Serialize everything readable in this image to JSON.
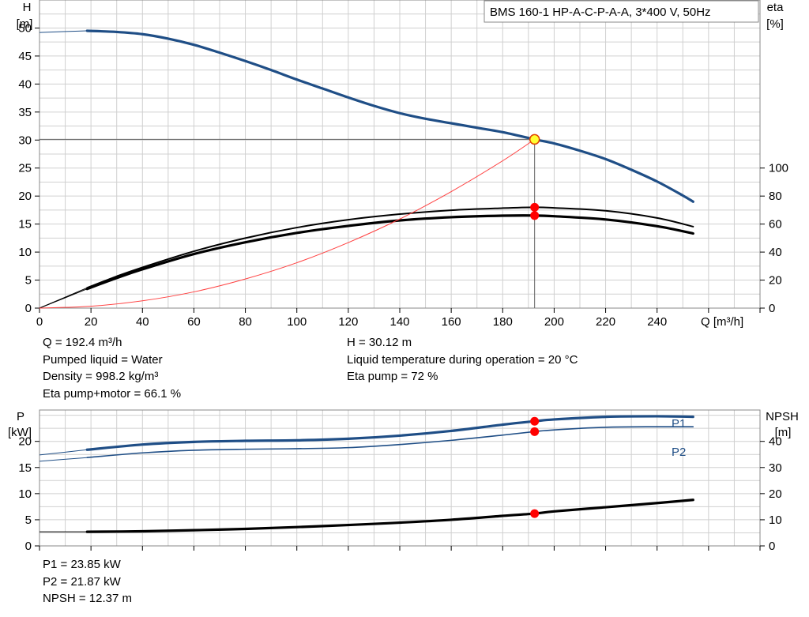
{
  "colors": {
    "head": "#1f4e86",
    "eta": "#000000",
    "system": "#ff4040",
    "p1": "#1f4e86",
    "p2": "#1f4e86",
    "npsh": "#000000",
    "duty_point": "#ff0000",
    "duty_point_head": "#ffff33",
    "grid": "#d0d0d0"
  },
  "pump_label": "BMS 160-1 HP-A-C-P-A-A, 3*400 V, 50Hz",
  "info_top_left": [
    "Q = 192.4 m³/h",
    "Pumped liquid = Water",
    "Density = 998.2 kg/m³",
    "Eta pump+motor = 66.1 %"
  ],
  "info_top_right": [
    "H = 30.12 m",
    "Liquid temperature during operation = 20 °C",
    "Eta pump = 72 %"
  ],
  "info_bottom": [
    "P1 = 23.85 kW",
    "P2 = 21.87 kW",
    "NPSH = 12.37 m"
  ],
  "chart_data": [
    {
      "type": "line",
      "x_axis": {
        "label": "Q [m³/h]",
        "range": [
          0,
          280
        ],
        "ticks": [
          0,
          20,
          40,
          60,
          80,
          100,
          120,
          140,
          160,
          180,
          200,
          220,
          240
        ]
      },
      "y_axis_left": {
        "label_top": "H",
        "label_unit": "[m]",
        "range": [
          0,
          55
        ],
        "ticks": [
          0,
          5,
          10,
          15,
          20,
          25,
          30,
          35,
          40,
          45,
          50
        ]
      },
      "y_axis_right": {
        "label_top": "eta",
        "label_unit": "[%]",
        "range": [
          0,
          220
        ],
        "ticks": [
          0,
          20,
          40,
          60,
          80,
          100
        ]
      },
      "grid": true,
      "series": [
        {
          "key": "head",
          "axis": "left",
          "width": 3.2,
          "ext_x": [
            0,
            18.5
          ],
          "ext_y": [
            49.2,
            49.5
          ],
          "x": [
            18.5,
            30,
            40,
            50,
            60,
            70,
            80,
            90,
            100,
            110,
            120,
            130,
            140,
            150,
            160,
            170,
            180,
            192.4,
            200,
            210,
            220,
            230,
            240,
            250,
            254
          ],
          "y": [
            49.5,
            49.3,
            48.9,
            48.1,
            47.0,
            45.6,
            44.1,
            42.5,
            40.8,
            39.2,
            37.6,
            36.1,
            34.8,
            33.8,
            33.0,
            32.2,
            31.4,
            30.12,
            29.4,
            28.1,
            26.6,
            24.7,
            22.6,
            20.1,
            19.0
          ]
        },
        {
          "key": "eta",
          "axis": "right",
          "width": 3.2,
          "ext_x": [
            0,
            18.5
          ],
          "ext_y": [
            0,
            13.7
          ],
          "x": [
            18.5,
            30,
            40,
            60,
            80,
            100,
            120,
            140,
            160,
            180,
            192.4,
            200,
            220,
            240,
            254
          ],
          "y": [
            13.7,
            21.5,
            27.7,
            38.6,
            47.0,
            53.7,
            58.7,
            62.6,
            64.9,
            66.0,
            66.1,
            65.6,
            63.3,
            58.5,
            53.3
          ]
        },
        {
          "key": "eta",
          "axis": "right",
          "width": 2.0,
          "ext_x": [
            0,
            18.5
          ],
          "ext_y": [
            0,
            14.5
          ],
          "x": [
            18.5,
            30,
            40,
            60,
            80,
            100,
            120,
            140,
            160,
            180,
            192.4,
            200,
            220,
            240,
            254
          ],
          "y": [
            14.5,
            22.7,
            29.1,
            40.6,
            50.0,
            57.5,
            63.1,
            67.1,
            69.9,
            71.4,
            72.0,
            71.6,
            69.5,
            64.4,
            58.2
          ]
        },
        {
          "key": "system",
          "axis": "left",
          "width": 1.0,
          "x": [
            0,
            20,
            40,
            60,
            80,
            100,
            120,
            140,
            160,
            180,
            192.4
          ],
          "y": [
            0,
            0.33,
            1.3,
            2.9,
            5.2,
            8.1,
            11.7,
            15.9,
            20.8,
            26.3,
            30.12
          ]
        }
      ],
      "operating_point": {
        "x": 192.4,
        "head": 30.12,
        "eta_pump": 72,
        "eta_total": 66.1
      }
    },
    {
      "type": "line",
      "x_axis": {
        "range": [
          0,
          280
        ]
      },
      "y_axis_left": {
        "label_top": "P",
        "label_unit": "[kW]",
        "range": [
          0,
          26
        ],
        "ticks": [
          0,
          5,
          10,
          15,
          20
        ]
      },
      "y_axis_right": {
        "label_top": "NPSH",
        "label_unit": "[m]",
        "range": [
          0,
          52
        ],
        "ticks": [
          0,
          10,
          20,
          30,
          40
        ]
      },
      "grid": true,
      "series": [
        {
          "key": "p1",
          "name": "P1",
          "axis": "left",
          "width": 3.2,
          "ext_x": [
            0,
            18.5
          ],
          "ext_y": [
            17.4,
            18.4
          ],
          "x": [
            18.5,
            40,
            60,
            80,
            100,
            120,
            140,
            160,
            180,
            192.4,
            200,
            220,
            240,
            254
          ],
          "y": [
            18.4,
            19.4,
            19.9,
            20.1,
            20.2,
            20.5,
            21.1,
            22.0,
            23.2,
            23.85,
            24.2,
            24.7,
            24.8,
            24.7
          ]
        },
        {
          "key": "p2",
          "name": "P2",
          "axis": "left",
          "width": 1.6,
          "ext_x": [
            0,
            18.5
          ],
          "ext_y": [
            16.2,
            16.9
          ],
          "x": [
            18.5,
            40,
            60,
            80,
            100,
            120,
            140,
            160,
            180,
            192.4,
            200,
            220,
            240,
            254
          ],
          "y": [
            16.9,
            17.8,
            18.3,
            18.5,
            18.6,
            18.8,
            19.4,
            20.2,
            21.2,
            21.87,
            22.2,
            22.7,
            22.8,
            22.8
          ]
        },
        {
          "key": "npsh",
          "axis": "right",
          "width": 3.2,
          "ext_x": [
            0,
            18.5
          ],
          "ext_y": [
            5.4,
            5.4
          ],
          "x": [
            18.5,
            40,
            60,
            80,
            100,
            120,
            140,
            160,
            180,
            192.4,
            200,
            220,
            240,
            254
          ],
          "y": [
            5.4,
            5.6,
            6.0,
            6.5,
            7.2,
            8.0,
            8.9,
            10.0,
            11.5,
            12.37,
            13.2,
            14.8,
            16.4,
            17.6
          ]
        }
      ],
      "operating_point": {
        "x": 192.4,
        "p1": 23.85,
        "p2": 21.87,
        "npsh": 12.37
      }
    }
  ]
}
